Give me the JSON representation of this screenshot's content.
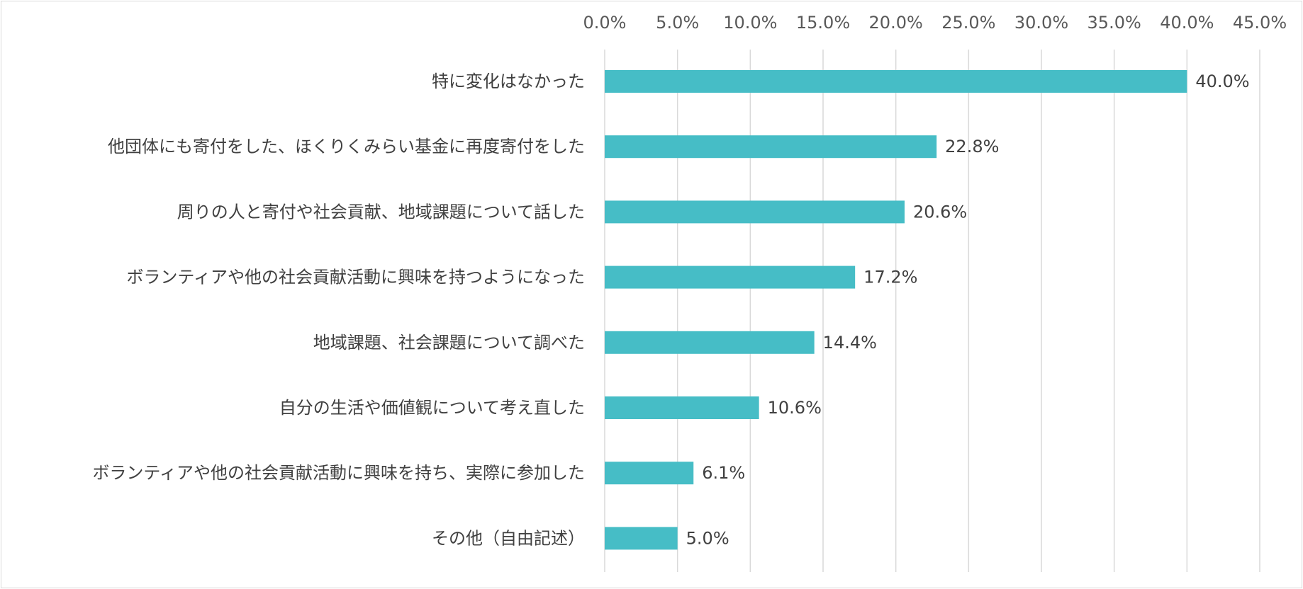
{
  "chart_data": {
    "type": "bar",
    "orientation": "horizontal",
    "title": "",
    "xlabel": "",
    "ylabel": "",
    "xlim": [
      0,
      45
    ],
    "x_ticks": [
      "0.0%",
      "5.0%",
      "10.0%",
      "15.0%",
      "20.0%",
      "25.0%",
      "30.0%",
      "35.0%",
      "40.0%",
      "45.0%"
    ],
    "x_tick_values": [
      0,
      5,
      10,
      15,
      20,
      25,
      30,
      35,
      40,
      45
    ],
    "x_axis_position": "top",
    "grid": true,
    "legend": "none",
    "categories": [
      "特に変化はなかった",
      "他団体にも寄付をした、ほくりくみらい基金に再度寄付をした",
      "周りの人と寄付や社会貢献、地域課題について話した",
      "ボランティアや他の社会貢献活動に興味を持つようになった",
      "地域課題、社会課題について調べた",
      "自分の生活や価値観について考え直した",
      "ボランティアや他の社会貢献活動に興味を持ち、実際に参加した",
      "その他（自由記述）"
    ],
    "values": [
      40.0,
      22.8,
      20.6,
      17.2,
      14.4,
      10.6,
      6.1,
      5.0
    ],
    "value_labels": [
      "40.0%",
      "22.8%",
      "20.6%",
      "17.2%",
      "14.4%",
      "10.6%",
      "6.1%",
      "5.0%"
    ],
    "colors": {
      "bar": "#46BDC6",
      "grid": "#d9d9d9",
      "frame": "#d9d9d9"
    }
  }
}
